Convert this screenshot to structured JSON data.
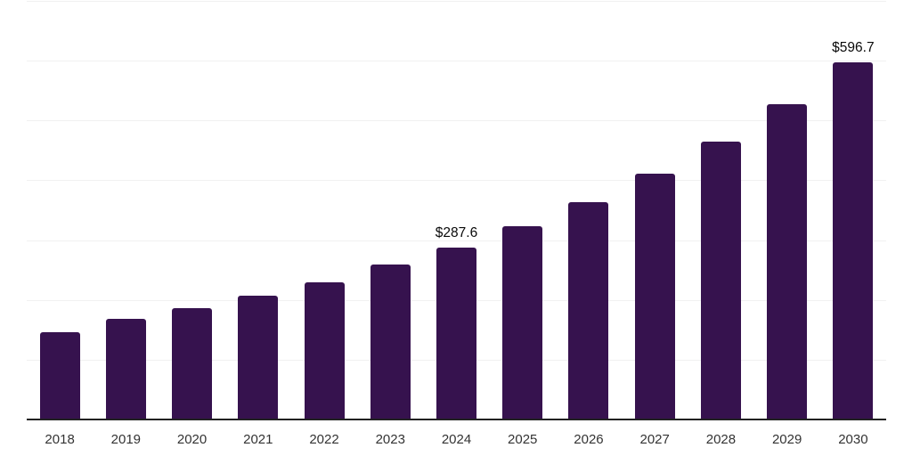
{
  "chart": {
    "background_color": "#ffffff",
    "bar_color": "#36124e",
    "gridline_color": "#f1f1f1",
    "axis_line_color": "#222222",
    "value_label_color": "#0a0a0a",
    "tick_label_color": "#333333"
  },
  "chart_data": {
    "type": "bar",
    "title": "",
    "xlabel": "",
    "ylabel": "",
    "categories": [
      "2018",
      "2019",
      "2020",
      "2021",
      "2022",
      "2023",
      "2024",
      "2025",
      "2026",
      "2027",
      "2028",
      "2029",
      "2030"
    ],
    "values": [
      146.0,
      168.3,
      186.2,
      207.0,
      229.4,
      259.1,
      287.6,
      323.2,
      363.4,
      411.1,
      464.7,
      527.2,
      596.7
    ],
    "data_labels": [
      "",
      "",
      "",
      "",
      "",
      "",
      "$287.6",
      "",
      "",
      "",
      "",
      "",
      "$596.7"
    ],
    "ylim": [
      0,
      700
    ],
    "gridline_interval": 100,
    "grid": true,
    "legend": false,
    "y_axis_labels_visible": false
  }
}
